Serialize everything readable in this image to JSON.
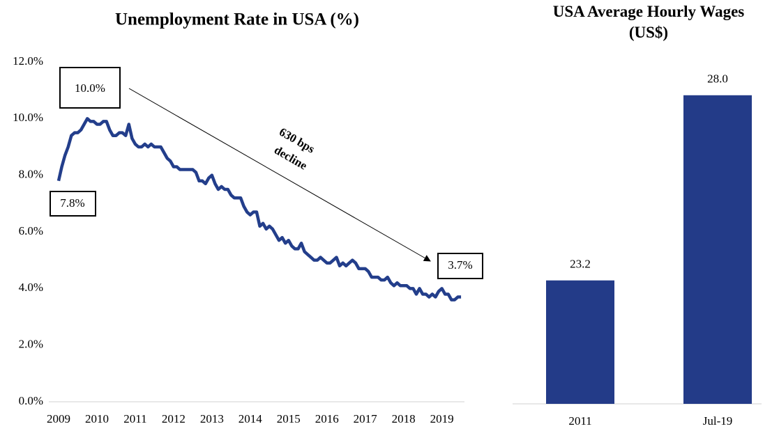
{
  "chart_data": [
    {
      "type": "line",
      "title": "Unemployment Rate in USA (%)",
      "categories": [
        "2009",
        null,
        null,
        null,
        null,
        null,
        null,
        null,
        null,
        null,
        null,
        null,
        "2010",
        null,
        null,
        null,
        null,
        null,
        null,
        null,
        null,
        null,
        null,
        null,
        "2011",
        null,
        null,
        null,
        null,
        null,
        null,
        null,
        null,
        null,
        null,
        null,
        "2012",
        null,
        null,
        null,
        null,
        null,
        null,
        null,
        null,
        null,
        null,
        null,
        "2013",
        null,
        null,
        null,
        null,
        null,
        null,
        null,
        null,
        null,
        null,
        null,
        "2014",
        null,
        null,
        null,
        null,
        null,
        null,
        null,
        null,
        null,
        null,
        null,
        "2015",
        null,
        null,
        null,
        null,
        null,
        null,
        null,
        null,
        null,
        null,
        null,
        "2016",
        null,
        null,
        null,
        null,
        null,
        null,
        null,
        null,
        null,
        null,
        null,
        "2017",
        null,
        null,
        null,
        null,
        null,
        null,
        null,
        null,
        null,
        null,
        null,
        "2018",
        null,
        null,
        null,
        null,
        null,
        null,
        null,
        null,
        null,
        null,
        null,
        "2019",
        null,
        null,
        null,
        null,
        null,
        null
      ],
      "values": [
        7.8,
        8.3,
        8.7,
        9.0,
        9.4,
        9.5,
        9.5,
        9.6,
        9.8,
        10.0,
        9.9,
        9.9,
        9.8,
        9.8,
        9.9,
        9.9,
        9.6,
        9.4,
        9.4,
        9.5,
        9.5,
        9.4,
        9.8,
        9.3,
        9.1,
        9.0,
        9.0,
        9.1,
        9.0,
        9.1,
        9.0,
        9.0,
        9.0,
        8.8,
        8.6,
        8.5,
        8.3,
        8.3,
        8.2,
        8.2,
        8.2,
        8.2,
        8.2,
        8.1,
        7.8,
        7.8,
        7.7,
        7.9,
        8.0,
        7.7,
        7.5,
        7.6,
        7.5,
        7.5,
        7.3,
        7.2,
        7.2,
        7.2,
        6.9,
        6.7,
        6.6,
        6.7,
        6.7,
        6.2,
        6.3,
        6.1,
        6.2,
        6.1,
        5.9,
        5.7,
        5.8,
        5.6,
        5.7,
        5.5,
        5.4,
        5.4,
        5.6,
        5.3,
        5.2,
        5.1,
        5.0,
        5.0,
        5.1,
        5.0,
        4.9,
        4.9,
        5.0,
        5.1,
        4.8,
        4.9,
        4.8,
        4.9,
        5.0,
        4.9,
        4.7,
        4.7,
        4.7,
        4.6,
        4.4,
        4.4,
        4.4,
        4.3,
        4.3,
        4.4,
        4.2,
        4.1,
        4.2,
        4.1,
        4.1,
        4.1,
        4.0,
        4.0,
        3.8,
        4.0,
        3.8,
        3.8,
        3.7,
        3.8,
        3.7,
        3.9,
        4.0,
        3.8,
        3.8,
        3.6,
        3.6,
        3.7,
        3.7
      ],
      "color": "#233e8b",
      "ylim": [
        0,
        12
      ],
      "yticks": [
        {
          "value": 0,
          "label": "0.0%"
        },
        {
          "value": 2,
          "label": "2.0%"
        },
        {
          "value": 4,
          "label": "4.0%"
        },
        {
          "value": 6,
          "label": "6.0%"
        },
        {
          "value": 8,
          "label": "8.0%"
        },
        {
          "value": 10,
          "label": "10.0%"
        },
        {
          "value": 12,
          "label": "12.0%"
        }
      ],
      "annotations": [
        "10.0%",
        "7.8%",
        "3.7%",
        "630 bps",
        "decline"
      ]
    },
    {
      "type": "bar",
      "title": "USA Average Hourly Wages (US$)",
      "categories": [
        "2011",
        "Jul-19"
      ],
      "values": [
        23.2,
        28.0
      ],
      "value_labels": [
        "23.2",
        "28.0"
      ],
      "color": "#233b88",
      "ylim": [
        20,
        30
      ]
    }
  ]
}
